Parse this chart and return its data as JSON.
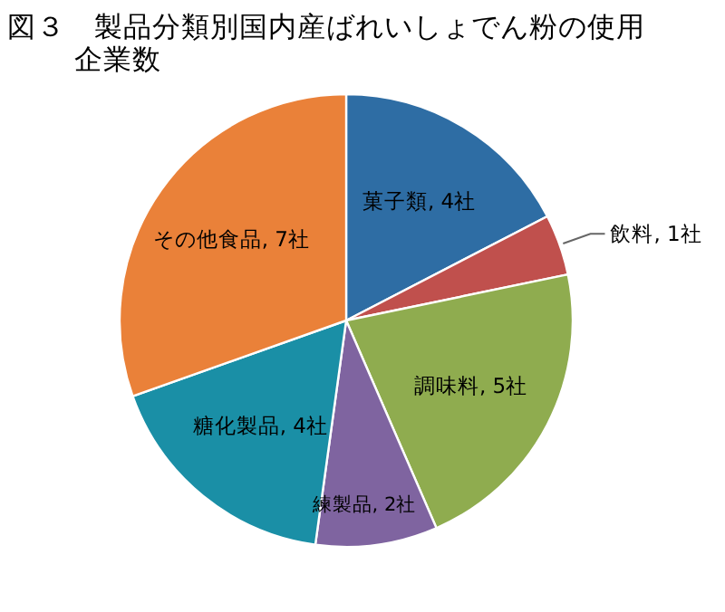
{
  "chart_data": {
    "type": "pie",
    "title": "図３　製品分類別国内産ばれいしょでん粉の使用企業数",
    "categories": [
      "菓子類",
      "飲料",
      "調味料",
      "練製品",
      "糖化製品",
      "その他食品"
    ],
    "values": [
      4,
      1,
      5,
      2,
      4,
      7
    ],
    "value_labels": [
      "4社",
      "1社",
      "5社",
      "2社",
      "4社",
      "7社"
    ],
    "colors": [
      "#2e6da4",
      "#c0504d",
      "#8fac4f",
      "#7f64a0",
      "#1a8fa6",
      "#ea8139"
    ],
    "legend": false
  }
}
